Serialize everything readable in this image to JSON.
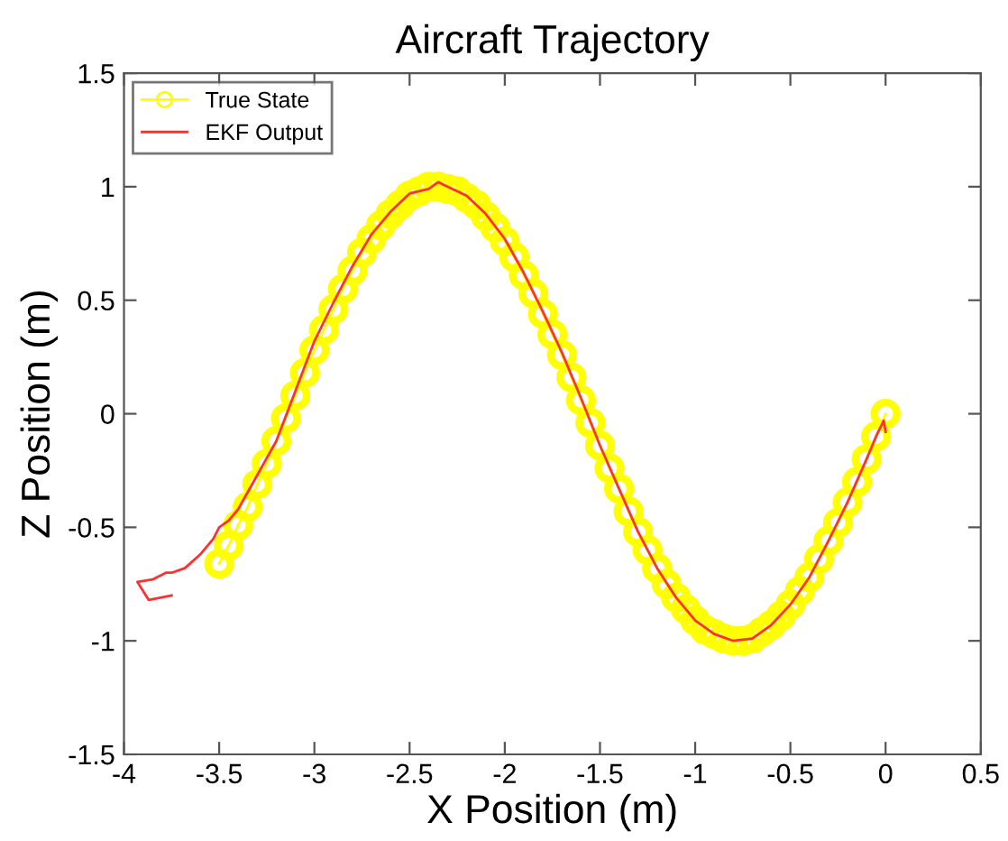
{
  "chart_data": {
    "type": "line",
    "title": "Aircraft Trajectory",
    "xlabel": "X Position (m)",
    "ylabel": "Z Position (m)",
    "xlim": [
      -4,
      0.5
    ],
    "xticks": [
      -4,
      -3.5,
      -3,
      -2.5,
      -2,
      -1.5,
      -1,
      -0.5,
      0,
      0.5
    ],
    "ylim": [
      -1.5,
      1.5
    ],
    "yticks": [
      -1.5,
      -1,
      -0.5,
      0,
      0.5,
      1,
      1.5
    ],
    "grid": false,
    "legend": "top left",
    "line_style": "solid",
    "series": [
      {
        "name": "True State",
        "color": "#ffff00",
        "marker": "circle",
        "x": [
          0,
          -0.05,
          -0.1,
          -0.15,
          -0.2,
          -0.25,
          -0.3,
          -0.35,
          -0.4,
          -0.45,
          -0.5,
          -0.55,
          -0.6,
          -0.65,
          -0.7,
          -0.75,
          -0.8,
          -0.85,
          -0.9,
          -0.95,
          -1.0,
          -1.05,
          -1.1,
          -1.15,
          -1.2,
          -1.25,
          -1.3,
          -1.35,
          -1.4,
          -1.45,
          -1.5,
          -1.55,
          -1.6,
          -1.65,
          -1.7,
          -1.75,
          -1.8,
          -1.85,
          -1.9,
          -1.95,
          -2.0,
          -2.05,
          -2.1,
          -2.15,
          -2.2,
          -2.25,
          -2.3,
          -2.35,
          -2.4,
          -2.45,
          -2.5,
          -2.55,
          -2.6,
          -2.65,
          -2.7,
          -2.75,
          -2.8,
          -2.85,
          -2.9,
          -2.95,
          -3.0,
          -3.05,
          -3.1,
          -3.15,
          -3.2,
          -3.25,
          -3.3,
          -3.35,
          -3.4,
          -3.45,
          -3.5
        ],
        "values": [
          0,
          -0.1,
          -0.2,
          -0.3,
          -0.39,
          -0.48,
          -0.56,
          -0.64,
          -0.72,
          -0.78,
          -0.84,
          -0.89,
          -0.93,
          -0.96,
          -0.99,
          -1.0,
          -1.0,
          -0.99,
          -0.97,
          -0.95,
          -0.91,
          -0.86,
          -0.81,
          -0.75,
          -0.68,
          -0.6,
          -0.52,
          -0.43,
          -0.33,
          -0.24,
          -0.14,
          -0.04,
          0.06,
          0.16,
          0.26,
          0.35,
          0.44,
          0.53,
          0.61,
          0.69,
          0.76,
          0.82,
          0.87,
          0.92,
          0.95,
          0.98,
          0.99,
          1.0,
          1.0,
          0.98,
          0.96,
          0.92,
          0.88,
          0.83,
          0.77,
          0.71,
          0.63,
          0.55,
          0.46,
          0.37,
          0.28,
          0.18,
          0.08,
          -0.02,
          -0.12,
          -0.22,
          -0.31,
          -0.41,
          -0.49,
          -0.58,
          -0.66
        ]
      },
      {
        "name": "EKF Output",
        "color": "#ff3030",
        "marker": "none",
        "x": [
          0,
          -0.01,
          -0.05,
          -0.1,
          -0.2,
          -0.3,
          -0.4,
          -0.5,
          -0.6,
          -0.7,
          -0.8,
          -0.9,
          -1.0,
          -1.1,
          -1.2,
          -1.3,
          -1.4,
          -1.5,
          -1.6,
          -1.7,
          -1.8,
          -1.9,
          -2.0,
          -2.1,
          -2.2,
          -2.3,
          -2.35,
          -2.4,
          -2.5,
          -2.6,
          -2.7,
          -2.8,
          -2.9,
          -3.0,
          -3.1,
          -3.2,
          -3.3,
          -3.4,
          -3.45,
          -3.5,
          -3.53,
          -3.6,
          -3.68,
          -3.75,
          -3.78,
          -3.85,
          -3.93,
          -3.87,
          -3.75
        ],
        "values": [
          -0.08,
          -0.03,
          -0.1,
          -0.2,
          -0.39,
          -0.56,
          -0.72,
          -0.84,
          -0.93,
          -0.99,
          -1.0,
          -0.97,
          -0.91,
          -0.81,
          -0.68,
          -0.52,
          -0.33,
          -0.14,
          0.07,
          0.27,
          0.45,
          0.62,
          0.77,
          0.88,
          0.96,
          1.0,
          1.02,
          0.99,
          0.97,
          0.89,
          0.79,
          0.65,
          0.49,
          0.32,
          0.1,
          -0.12,
          -0.27,
          -0.42,
          -0.47,
          -0.5,
          -0.55,
          -0.62,
          -0.68,
          -0.7,
          -0.7,
          -0.73,
          -0.74,
          -0.82,
          -0.8
        ]
      }
    ]
  }
}
